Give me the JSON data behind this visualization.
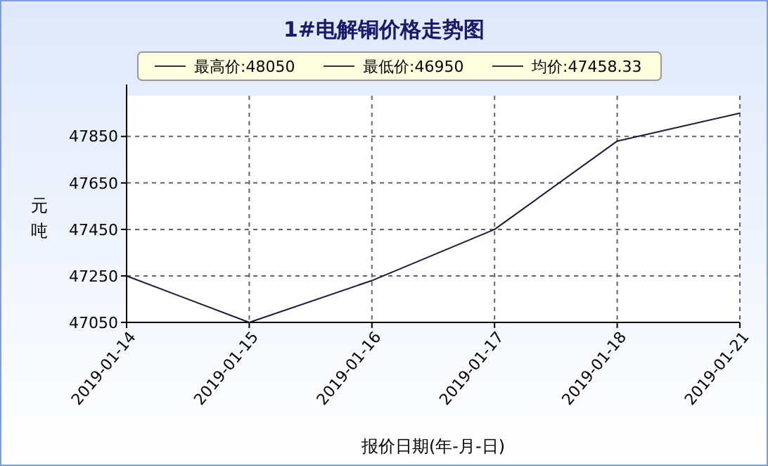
{
  "chart_data": {
    "type": "line",
    "title": "1#电解铜价格走势图",
    "xlabel": "报价日期(年-月-日)",
    "ylabel": "元吨",
    "categories": [
      "2019-01-14",
      "2019-01-15",
      "2019-01-16",
      "2019-01-17",
      "2019-01-18",
      "2019-01-21"
    ],
    "series": [
      {
        "color": "#1a1a3a",
        "values": [
          47250,
          47050,
          47230,
          47450,
          47830,
          47950
        ]
      }
    ],
    "ylim": [
      47050,
      48025
    ],
    "yticks": [
      47050,
      47250,
      47450,
      47650,
      47850
    ],
    "grid": true,
    "line_style": "solid",
    "marker": "none",
    "annotations": [
      "最高价:48050",
      "最低价:46950",
      "均价:47458.33"
    ]
  }
}
